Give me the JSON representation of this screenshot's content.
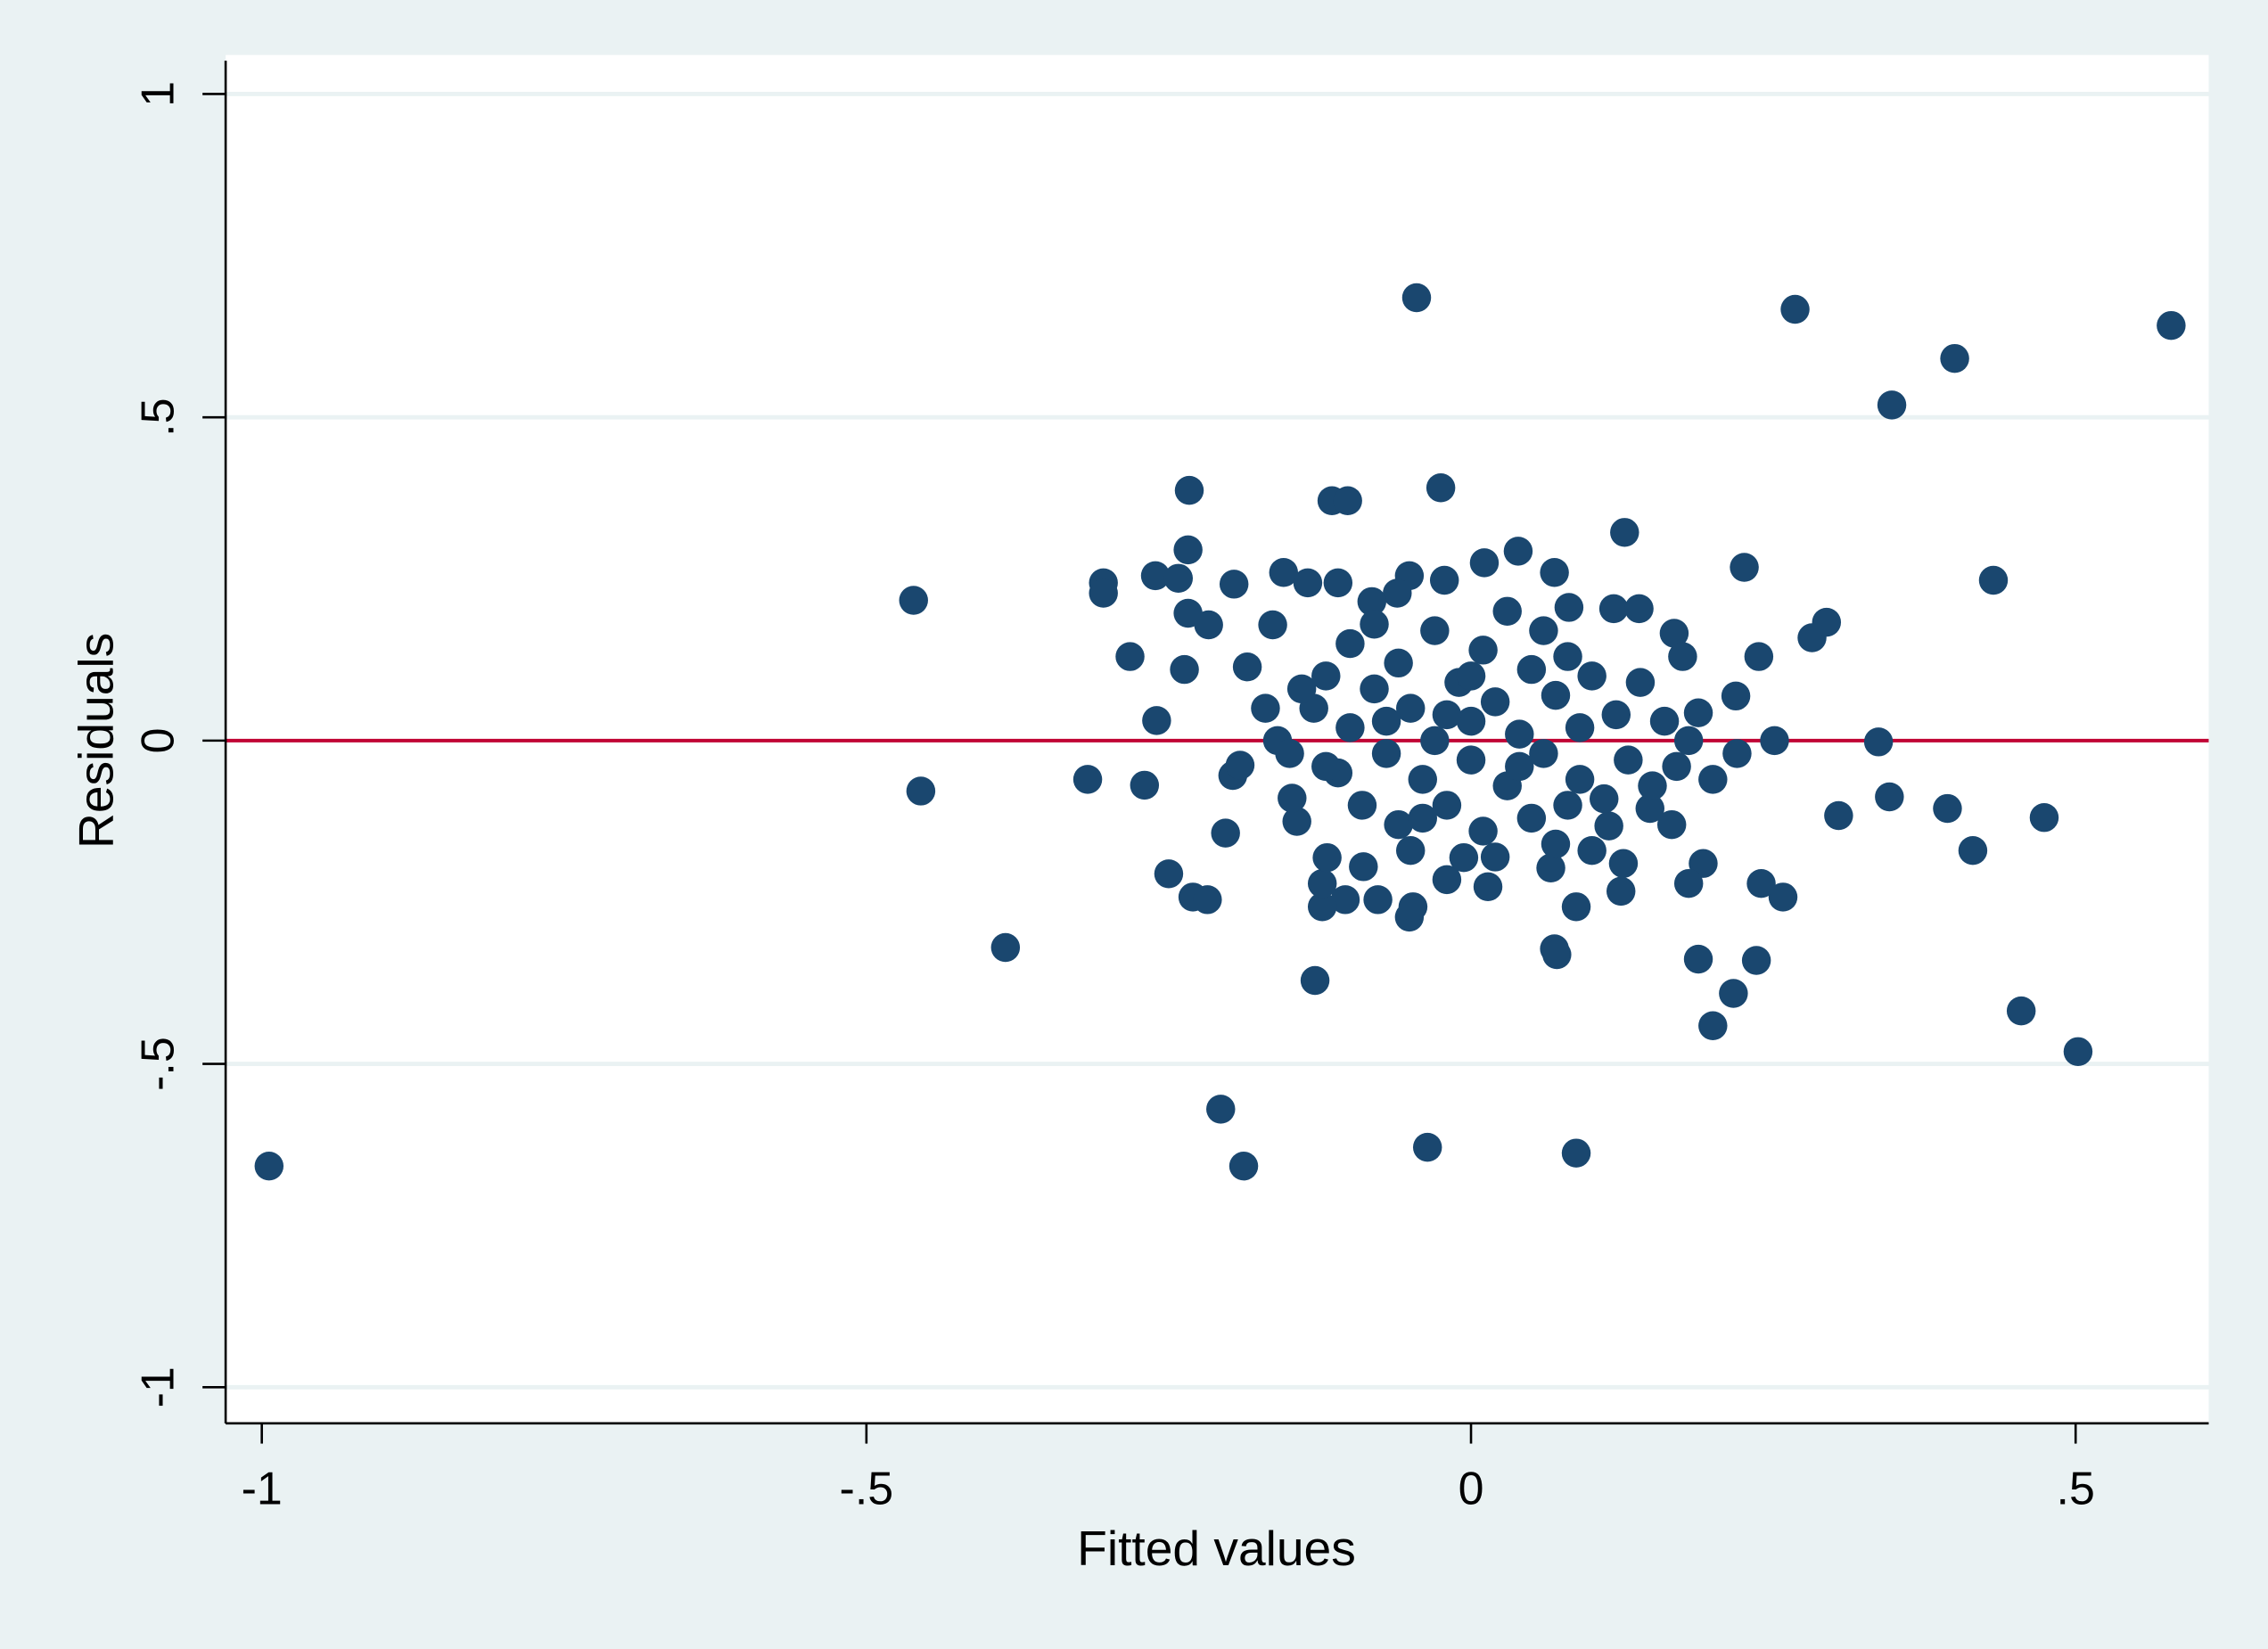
{
  "chart_data": {
    "type": "scatter",
    "title": "",
    "xlabel": "Fitted values",
    "ylabel": "Residuals",
    "xlim": [
      -1.03,
      0.61
    ],
    "ylim": [
      -1.06,
      1.06
    ],
    "xticks": [
      {
        "value": -1,
        "label": "-1"
      },
      {
        "value": -0.5,
        "label": "-.5"
      },
      {
        "value": 0,
        "label": "0"
      },
      {
        "value": 0.5,
        "label": ".5"
      }
    ],
    "yticks": [
      {
        "value": -1,
        "label": "-1"
      },
      {
        "value": -0.5,
        "label": "-.5"
      },
      {
        "value": 0,
        "label": "0"
      },
      {
        "value": 0.5,
        "label": ".5"
      },
      {
        "value": 1,
        "label": "1"
      }
    ],
    "grid": "horizontal",
    "reference_line": {
      "y": 0,
      "color": "#c10534"
    },
    "marker_color": "#1a476f",
    "background_color": "#eaf2f3",
    "points": [
      [
        -0.994,
        -0.658
      ],
      [
        -0.461,
        0.217
      ],
      [
        -0.455,
        -0.078
      ],
      [
        -0.385,
        -0.32
      ],
      [
        -0.317,
        -0.06
      ],
      [
        -0.304,
        0.244
      ],
      [
        -0.304,
        0.228
      ],
      [
        -0.282,
        0.13
      ],
      [
        -0.27,
        -0.069
      ],
      [
        -0.26,
        0.031
      ],
      [
        -0.261,
        0.255
      ],
      [
        -0.25,
        -0.206
      ],
      [
        -0.242,
        0.251
      ],
      [
        -0.233,
        0.387
      ],
      [
        -0.234,
        0.295
      ],
      [
        -0.234,
        0.197
      ],
      [
        -0.237,
        0.11
      ],
      [
        -0.23,
        -0.242
      ],
      [
        -0.218,
        -0.246
      ],
      [
        -0.217,
        0.179
      ],
      [
        -0.207,
        -0.57
      ],
      [
        -0.203,
        -0.143
      ],
      [
        -0.196,
        0.242
      ],
      [
        -0.197,
        -0.054
      ],
      [
        -0.191,
        -0.038
      ],
      [
        -0.188,
        -0.658
      ],
      [
        -0.185,
        0.114
      ],
      [
        -0.155,
        0.26
      ],
      [
        -0.129,
        -0.371
      ],
      [
        -0.115,
        0.371
      ],
      [
        -0.102,
        0.371
      ],
      [
        -0.045,
        0.685
      ],
      [
        -0.025,
        0.391
      ],
      [
        -0.036,
        -0.629
      ],
      [
        0.087,
        -0.638
      ],
      [
        0.127,
        0.322
      ],
      [
        0.039,
        0.293
      ],
      [
        0.268,
        0.667
      ],
      [
        0.226,
        0.268
      ],
      [
        0.238,
        0.13
      ],
      [
        0.282,
        0.159
      ],
      [
        0.294,
        0.183
      ],
      [
        0.251,
        0.0
      ],
      [
        0.258,
        -0.242
      ],
      [
        0.24,
        -0.221
      ],
      [
        0.236,
        -0.34
      ],
      [
        0.217,
        -0.391
      ],
      [
        0.2,
        -0.441
      ],
      [
        0.188,
        -0.338
      ],
      [
        0.192,
        -0.19
      ],
      [
        0.18,
        -0.221
      ],
      [
        0.219,
        0.069
      ],
      [
        0.188,
        0.043
      ],
      [
        0.304,
        -0.116
      ],
      [
        0.337,
        -0.002
      ],
      [
        0.346,
        -0.087
      ],
      [
        0.348,
        0.519
      ],
      [
        0.4,
        0.591
      ],
      [
        0.432,
        0.248
      ],
      [
        0.394,
        -0.105
      ],
      [
        0.415,
        -0.17
      ],
      [
        0.474,
        -0.119
      ],
      [
        0.455,
        -0.418
      ],
      [
        0.502,
        -0.481
      ],
      [
        0.579,
        0.642
      ],
      [
        0.069,
        -0.322
      ],
      [
        0.071,
        -0.331
      ],
      [
        0.087,
        -0.257
      ],
      [
        0.124,
        -0.233
      ],
      [
        0.126,
        -0.19
      ],
      [
        0.081,
        0.206
      ],
      [
        0.118,
        0.204
      ],
      [
        0.139,
        0.204
      ],
      [
        0.168,
        0.166
      ],
      [
        0.175,
        0.13
      ],
      [
        0.069,
        0.26
      ],
      [
        0.011,
        0.275
      ],
      [
        -0.022,
        0.248
      ],
      [
        -0.051,
        0.255
      ],
      [
        -0.061,
        0.228
      ],
      [
        -0.082,
        0.215
      ],
      [
        -0.11,
        0.244
      ],
      [
        -0.135,
        0.244
      ],
      [
        -0.164,
        0.179
      ],
      [
        -0.051,
        -0.273
      ],
      [
        -0.048,
        -0.257
      ],
      [
        -0.077,
        -0.246
      ],
      [
        -0.104,
        -0.246
      ],
      [
        -0.123,
        -0.257
      ],
      [
        -0.123,
        -0.221
      ],
      [
        -0.119,
        -0.181
      ],
      [
        -0.089,
        -0.195
      ],
      [
        -0.02,
        -0.215
      ],
      [
        0.014,
        -0.226
      ],
      [
        -0.006,
        -0.181
      ],
      [
        -0.144,
        -0.125
      ],
      [
        -0.148,
        -0.089
      ],
      [
        0.114,
        -0.132
      ],
      [
        0.166,
        -0.13
      ],
      [
        0.148,
        -0.105
      ],
      [
        0.066,
        -0.197
      ],
      [
        -0.16,
        0.0
      ],
      [
        -0.15,
        -0.02
      ],
      [
        -0.13,
        0.05
      ],
      [
        -0.12,
        0.1
      ],
      [
        -0.11,
        -0.05
      ],
      [
        -0.1,
        0.15
      ],
      [
        -0.1,
        0.02
      ],
      [
        -0.09,
        -0.1
      ],
      [
        -0.08,
        0.08
      ],
      [
        -0.07,
        -0.02
      ],
      [
        -0.06,
        0.12
      ],
      [
        -0.06,
        -0.13
      ],
      [
        -0.05,
        0.05
      ],
      [
        -0.04,
        -0.06
      ],
      [
        -0.03,
        0.17
      ],
      [
        -0.03,
        0.0
      ],
      [
        -0.02,
        -0.1
      ],
      [
        -0.01,
        0.09
      ],
      [
        0.0,
        -0.03
      ],
      [
        0.0,
        0.03
      ],
      [
        0.01,
        0.14
      ],
      [
        0.01,
        -0.14
      ],
      [
        0.02,
        0.06
      ],
      [
        0.03,
        -0.07
      ],
      [
        0.03,
        0.2
      ],
      [
        0.04,
        0.01
      ],
      [
        0.05,
        -0.12
      ],
      [
        0.05,
        0.11
      ],
      [
        0.06,
        -0.02
      ],
      [
        0.07,
        0.07
      ],
      [
        0.07,
        -0.16
      ],
      [
        0.08,
        0.13
      ],
      [
        0.09,
        -0.06
      ],
      [
        0.09,
        0.02
      ],
      [
        0.1,
        0.1
      ],
      [
        0.11,
        -0.09
      ],
      [
        0.12,
        0.04
      ],
      [
        0.13,
        -0.03
      ],
      [
        0.14,
        0.09
      ],
      [
        0.15,
        -0.07
      ],
      [
        0.16,
        0.03
      ],
      [
        0.17,
        -0.04
      ],
      [
        -0.14,
        0.08
      ],
      [
        -0.12,
        -0.04
      ],
      [
        -0.08,
        0.18
      ],
      [
        -0.05,
        -0.17
      ],
      [
        0.02,
        -0.18
      ],
      [
        0.06,
        0.17
      ],
      [
        0.1,
        -0.17
      ],
      [
        -0.17,
        0.05
      ],
      [
        0.18,
        0.0
      ],
      [
        0.2,
        -0.06
      ],
      [
        0.22,
        -0.02
      ],
      [
        -0.02,
        0.04
      ],
      [
        0.04,
        -0.04
      ],
      [
        -0.07,
        0.03
      ],
      [
        0.08,
        -0.1
      ],
      [
        0.0,
        0.1
      ],
      [
        -0.04,
        -0.12
      ]
    ]
  }
}
